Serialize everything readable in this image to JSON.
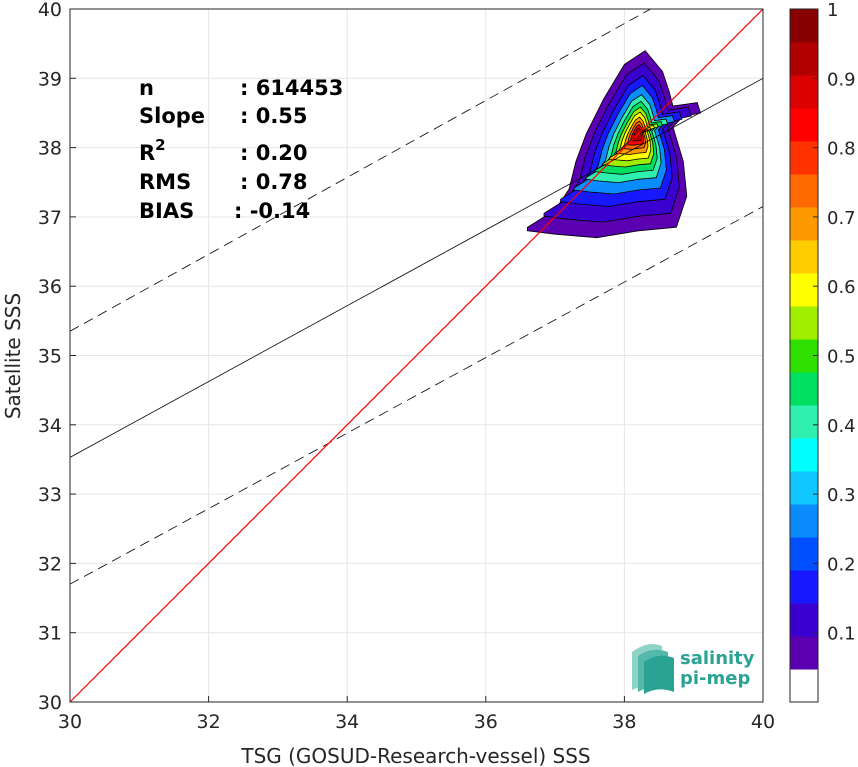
{
  "chart_data": {
    "type": "contour-scatter",
    "xlabel": "TSG (GOSUD-Research-vessel) SSS",
    "ylabel": "Satellite SSS",
    "xlim": [
      30,
      40
    ],
    "ylim": [
      30,
      40
    ],
    "xticks": [
      "30",
      "32",
      "34",
      "36",
      "38",
      "40"
    ],
    "yticks": [
      "30",
      "31",
      "32",
      "33",
      "34",
      "35",
      "36",
      "37",
      "38",
      "39",
      "40"
    ],
    "stats": [
      {
        "label": "n",
        "value": ": 614453"
      },
      {
        "label": "Slope",
        "value": ": 0.55"
      },
      {
        "label": "R",
        "sup": "2",
        "value": ": 0.20"
      },
      {
        "label": "RMS",
        "value": ": 0.78"
      },
      {
        "label": "BIAS",
        "value": ": -0.14"
      }
    ],
    "one_to_one_line": {
      "color": "#ff0000",
      "from": [
        30,
        30
      ],
      "to": [
        40,
        40
      ]
    },
    "regression_line": {
      "color": "#000000",
      "slope": 0.55,
      "from": [
        30,
        33.53
      ],
      "to": [
        40,
        39.0
      ]
    },
    "bounds_lines": {
      "color": "#000000",
      "style": "dashed",
      "upper": {
        "from": [
          30,
          35.35
        ],
        "to": [
          40,
          40.9
        ]
      },
      "lower": {
        "from": [
          30,
          31.7
        ],
        "to": [
          40,
          37.15
        ]
      }
    },
    "density_peak": {
      "x": 38.2,
      "y": 38.2
    },
    "colorbar": {
      "ticks": [
        "0.1",
        "0.2",
        "0.3",
        "0.4",
        "0.5",
        "0.6",
        "0.7",
        "0.8",
        "0.9",
        "1"
      ],
      "range": [
        0,
        1
      ],
      "colors": [
        "#ffffff",
        "#5b00b0",
        "#3a00d0",
        "#1818ff",
        "#0050ff",
        "#0a8cff",
        "#10c8ff",
        "#00ffff",
        "#30f0b0",
        "#00e060",
        "#30e000",
        "#a0ee00",
        "#ffff00",
        "#ffcc00",
        "#ff9900",
        "#ff6a00",
        "#ff3300",
        "#ff0000",
        "#dd0000",
        "#b00000",
        "#8a0000"
      ]
    },
    "grid": true,
    "legend": "none"
  },
  "logo": {
    "line1": "salinity",
    "line2": "pi-mep"
  }
}
